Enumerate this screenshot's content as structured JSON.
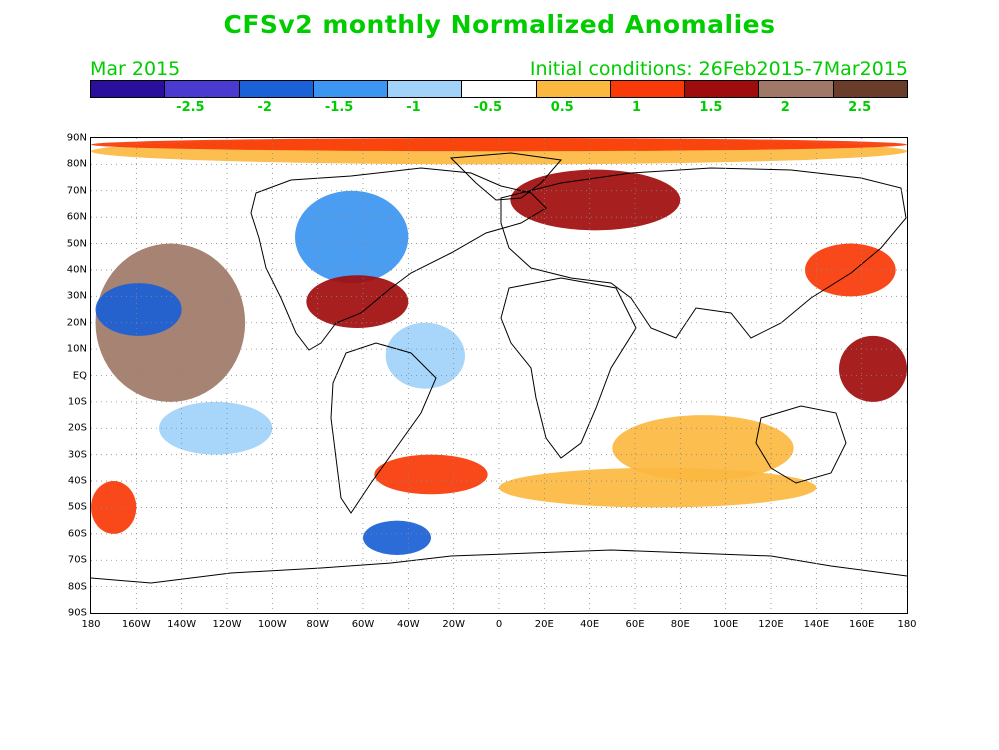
{
  "title": "CFSv2 monthly Normalized Anomalies",
  "month_label": "Mar 2015",
  "initial_conditions": "Initial conditions: 26Feb2015-7Mar2015",
  "colors": {
    "text": "#00cc00",
    "scale": [
      "#2a0e9c",
      "#4a3ad0",
      "#1a60d6",
      "#3c95f0",
      "#a0d2fa",
      "#ffffff",
      "#fbb840",
      "#f83a08",
      "#a00c0c",
      "#a07868",
      "#6a3c2a"
    ]
  },
  "colorbar": {
    "tick_labels": [
      "-2.5",
      "-2",
      "-1.5",
      "-1",
      "-0.5",
      "0.5",
      "1",
      "1.5",
      "2",
      "2.5"
    ]
  },
  "lat_labels": [
    "90N",
    "80N",
    "70N",
    "60N",
    "50N",
    "40N",
    "30N",
    "20N",
    "10N",
    "EQ",
    "10S",
    "20S",
    "30S",
    "40S",
    "50S",
    "60S",
    "70S",
    "80S",
    "90S"
  ],
  "lon_labels": [
    "180",
    "160W",
    "140W",
    "120W",
    "100W",
    "80W",
    "60W",
    "40W",
    "20W",
    "0",
    "20E",
    "40E",
    "60E",
    "80E",
    "100E",
    "120E",
    "140E",
    "160E",
    "180"
  ],
  "anomaly_regions": [
    {
      "name": "arctic-warm",
      "level": 1,
      "lon": [
        -180,
        180
      ],
      "lat": [
        80,
        90
      ]
    },
    {
      "name": "arctic-strong",
      "level": 2,
      "lon": [
        -180,
        180
      ],
      "lat": [
        85,
        90
      ]
    },
    {
      "name": "ne-pacific-warm",
      "level": 4,
      "lon": [
        -178,
        -112
      ],
      "lat": [
        -10,
        50
      ]
    },
    {
      "name": "central-pacific-cold",
      "level": -3,
      "lon": [
        -178,
        -140
      ],
      "lat": [
        15,
        35
      ]
    },
    {
      "name": "north-america-cold",
      "level": -2,
      "lon": [
        -90,
        -40
      ],
      "lat": [
        35,
        70
      ]
    },
    {
      "name": "west-atlantic-warm",
      "level": 3,
      "lon": [
        -85,
        -40
      ],
      "lat": [
        18,
        38
      ]
    },
    {
      "name": "siberia-warm",
      "level": 3,
      "lon": [
        5,
        80
      ],
      "lat": [
        55,
        78
      ]
    },
    {
      "name": "south-atlantic-warm",
      "level": 2,
      "lon": [
        -55,
        -5
      ],
      "lat": [
        -45,
        -30
      ]
    },
    {
      "name": "southern-ocean-warm",
      "level": 1,
      "lon": [
        0,
        140
      ],
      "lat": [
        -50,
        -35
      ]
    },
    {
      "name": "weddell-cold",
      "level": -3,
      "lon": [
        -60,
        -30
      ],
      "lat": [
        -68,
        -55
      ]
    },
    {
      "name": "w-pacific-warm",
      "level": 3,
      "lon": [
        150,
        180
      ],
      "lat": [
        -10,
        15
      ]
    },
    {
      "name": "sw-pacific-warm",
      "level": 2,
      "lon": [
        -180,
        -160
      ],
      "lat": [
        -60,
        -40
      ]
    },
    {
      "name": "ne-pacific-japan-warm",
      "level": 2,
      "lon": [
        135,
        175
      ],
      "lat": [
        30,
        50
      ]
    },
    {
      "name": "tropical-atlantic-cold",
      "level": -1,
      "lon": [
        -50,
        -15
      ],
      "lat": [
        -5,
        20
      ]
    },
    {
      "name": "south-pacific-cold",
      "level": -1,
      "lon": [
        -150,
        -100
      ],
      "lat": [
        -30,
        -10
      ]
    },
    {
      "name": "indian-ocean-warm",
      "level": 1,
      "lon": [
        50,
        130
      ],
      "lat": [
        -40,
        -15
      ]
    }
  ]
}
